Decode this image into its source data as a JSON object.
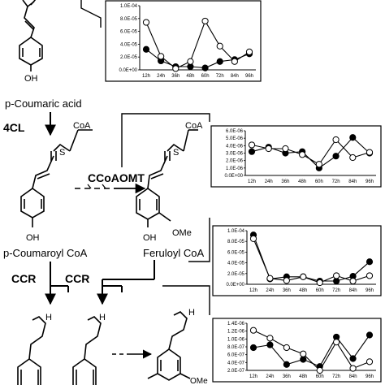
{
  "compounds": {
    "p_coumaric_acid": "p-Coumaric acid",
    "p_coumaroyl_coa": "p-Coumaroyl CoA",
    "feruloyl_coa": "Feruloyl CoA"
  },
  "atoms": {
    "oh": "OH",
    "coa": "CoA",
    "s": "S",
    "ome": "OMe",
    "h": "H"
  },
  "enzymes": {
    "cl4": "4CL",
    "ccoaomt": "CCoAOMT",
    "ccr": "CCR"
  },
  "colors": {
    "filled_marker": "#000000",
    "open_marker": "#ffffff",
    "line": "#000000"
  },
  "chart_data": [
    {
      "type": "line",
      "categories": [
        "12h",
        "24h",
        "36h",
        "48h",
        "60h",
        "72h",
        "84h",
        "96h"
      ],
      "yticks": [
        "1.0E-04",
        "8.0E-05",
        "6.0E-05",
        "4.0E-05",
        "2.0E-05",
        "0.0E+00"
      ],
      "ylim": [
        0,
        0.0001
      ],
      "partial_top": true,
      "series": [
        {
          "marker": "filled",
          "values": [
            3.2e-05,
            1.4e-05,
            5e-06,
            5e-06,
            3e-06,
            1.3e-05,
            1.6e-05,
            2.5e-05
          ]
        },
        {
          "marker": "open",
          "values": [
            7.4e-05,
            2.1e-05,
            2e-06,
            1.3e-05,
            7.6e-05,
            3.7e-05,
            1.3e-05,
            2.8e-05
          ]
        }
      ]
    },
    {
      "type": "line",
      "categories": [
        "12h",
        "24h",
        "36h",
        "48h",
        "60h",
        "72h",
        "84h",
        "96h"
      ],
      "yticks": [
        "6.0E-06",
        "5.0E-06",
        "4.0E-06",
        "3.0E-06",
        "2.0E-06",
        "1.0E-06",
        "0.0E+00"
      ],
      "ylim": [
        0,
        6e-06
      ],
      "series": [
        {
          "marker": "filled",
          "values": [
            3.2e-06,
            3.8e-06,
            3e-06,
            3.2e-06,
            1e-06,
            2.6e-06,
            5.1e-06,
            3e-06
          ]
        },
        {
          "marker": "open",
          "values": [
            4.1e-06,
            3.6e-06,
            3.6e-06,
            2.8e-06,
            1.5e-06,
            4.8e-06,
            2.4e-06,
            3.1e-06
          ]
        }
      ]
    },
    {
      "type": "line",
      "categories": [
        "12h",
        "24h",
        "36h",
        "48h",
        "60h",
        "72h",
        "84h",
        "96h"
      ],
      "yticks": [
        "1.0E-04",
        "8.0E-05",
        "6.0E-05",
        "4.0E-05",
        "2.0E-05",
        "0.0E+00"
      ],
      "ylim": [
        0,
        0.0001
      ],
      "series": [
        {
          "marker": "filled",
          "values": [
            9.2e-05,
            1e-05,
            1.4e-05,
            1.4e-05,
            6e-06,
            6e-06,
            1.5e-05,
            4.2e-05
          ]
        },
        {
          "marker": "open",
          "values": [
            8.5e-05,
            1.1e-05,
            7e-06,
            1.4e-05,
            3e-06,
            1.6e-05,
            6e-06,
            1.6e-05
          ]
        }
      ]
    },
    {
      "type": "line",
      "categories": [
        "12h",
        "24h",
        "36h",
        "48h",
        "60h",
        "72h",
        "84h",
        "96h"
      ],
      "yticks": [
        "1.4E-06",
        "1.2E-06",
        "1.0E-06",
        "8.0E-07",
        "6.0E-07",
        "4.0E-07",
        "2.0E-07"
      ],
      "ylim": [
        0,
        1.4e-06
      ],
      "partial_bottom": true,
      "series": [
        {
          "marker": "filled",
          "values": [
            7.8e-07,
            8.5e-07,
            3.5e-07,
            4.8e-07,
            3e-07,
            1.05e-06,
            5e-07,
            1.1e-06
          ]
        },
        {
          "marker": "open",
          "values": [
            1.22e-06,
            1.02e-06,
            7.8e-07,
            6.2e-07,
            1.8e-07,
            9.2e-07,
            2.5e-07,
            4.2e-07
          ]
        }
      ]
    }
  ]
}
